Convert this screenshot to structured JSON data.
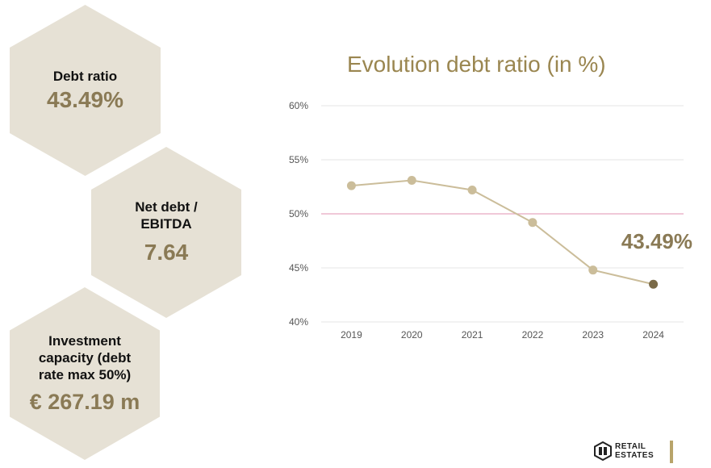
{
  "kpis": [
    {
      "label": "Debt ratio",
      "value": "43.49%"
    },
    {
      "label": "Net debt /\nEBITDA",
      "value": "7.64"
    },
    {
      "label": "Investment\ncapacity (debt\nrate max 50%)",
      "value": "€ 267.19 m"
    }
  ],
  "chart_data": {
    "type": "line",
    "title": "Evolution debt ratio (in %)",
    "xlabel": "",
    "ylabel": "",
    "x": [
      "2019",
      "2020",
      "2021",
      "2022",
      "2023",
      "2024"
    ],
    "series": [
      {
        "values": [
          52.6,
          53.1,
          52.2,
          49.2,
          44.8,
          43.49
        ]
      }
    ],
    "ylim": [
      40,
      60
    ],
    "yticks": [
      "40%",
      "45%",
      "50%",
      "55%",
      "60%"
    ],
    "reference_line": {
      "value": 50,
      "color": "#e8a6c0"
    },
    "callout": "43.49%",
    "grid": true,
    "line_color": "#cbbd9a",
    "last_point_color": "#7a6a48"
  },
  "logo": {
    "line1": "RETAIL",
    "line2": "ESTATES"
  }
}
